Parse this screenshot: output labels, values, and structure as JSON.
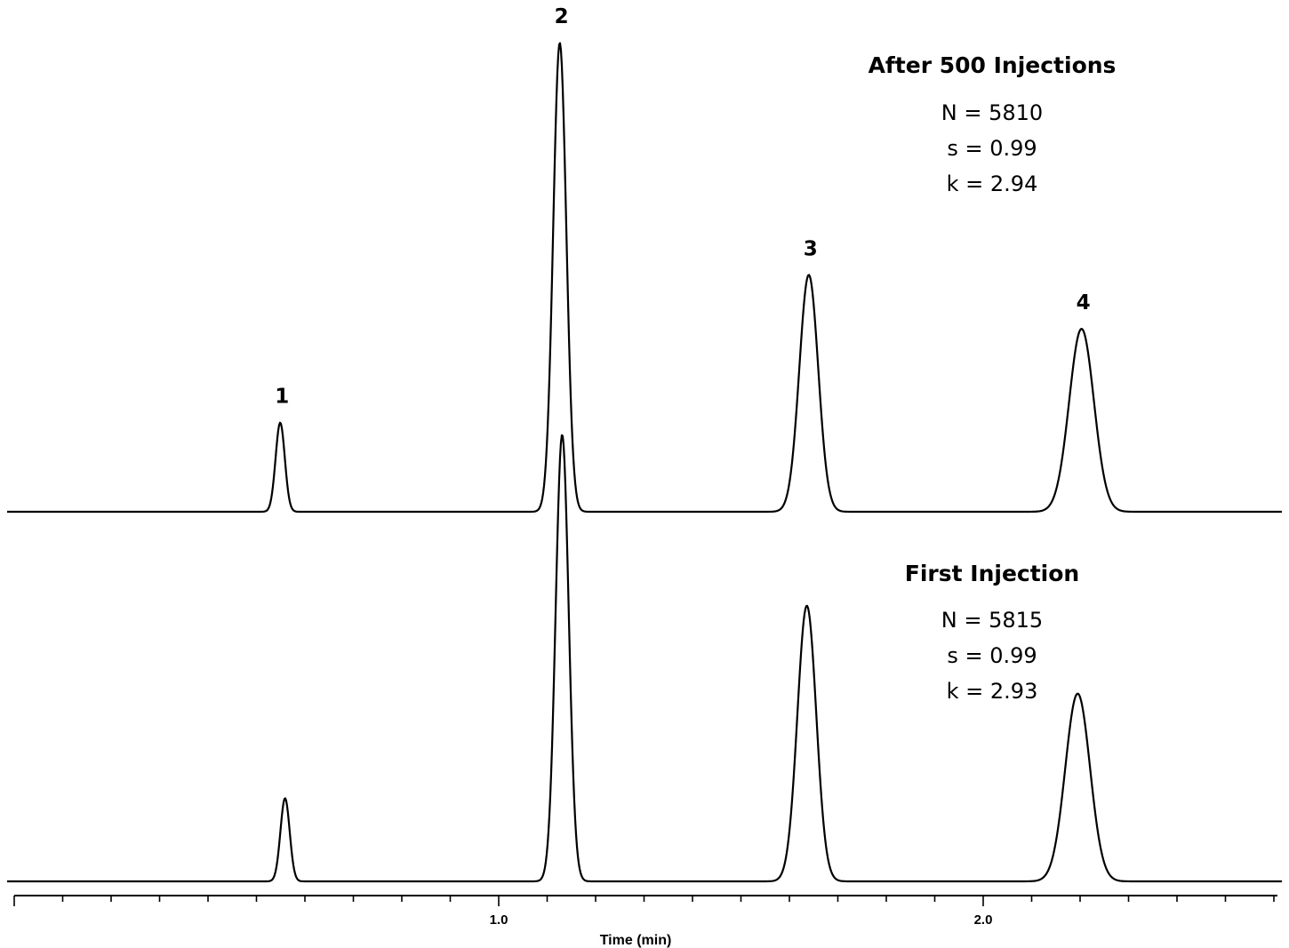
{
  "chart_data": {
    "type": "line",
    "xlabel": "Time (min)",
    "ylabel": "",
    "xlim": [
      0,
      2.6
    ],
    "x_tick_labels": [
      {
        "x": 1.0,
        "label": "1.0"
      },
      {
        "x": 2.0,
        "label": "2.0"
      }
    ],
    "x_minor_tick_step": 0.1,
    "grid": false,
    "traces": [
      {
        "key": "after500",
        "title": "After 500 Injections",
        "stats": [
          "N = 5810",
          "s = 0.99",
          "k = 2.94"
        ],
        "peaks": [
          {
            "label": "1",
            "rt": 0.549,
            "height": 0.19,
            "sigma": 0.0095
          },
          {
            "label": "2",
            "rt": 1.126,
            "height": 1.0,
            "sigma": 0.0135
          },
          {
            "label": "3",
            "rt": 1.64,
            "height": 0.505,
            "sigma": 0.0195
          },
          {
            "label": "4",
            "rt": 2.203,
            "height": 0.39,
            "sigma": 0.0255
          }
        ]
      },
      {
        "key": "first",
        "title": "First Injection",
        "stats": [
          "N = 5815",
          "s = 0.99",
          "k = 2.93"
        ],
        "peaks": [
          {
            "label": "",
            "rt": 0.559,
            "height": 0.175,
            "sigma": 0.0095
          },
          {
            "label": "",
            "rt": 1.131,
            "height": 0.94,
            "sigma": 0.0135
          },
          {
            "label": "",
            "rt": 1.636,
            "height": 0.58,
            "sigma": 0.0195
          },
          {
            "label": "",
            "rt": 2.195,
            "height": 0.395,
            "sigma": 0.0255
          }
        ]
      }
    ]
  }
}
